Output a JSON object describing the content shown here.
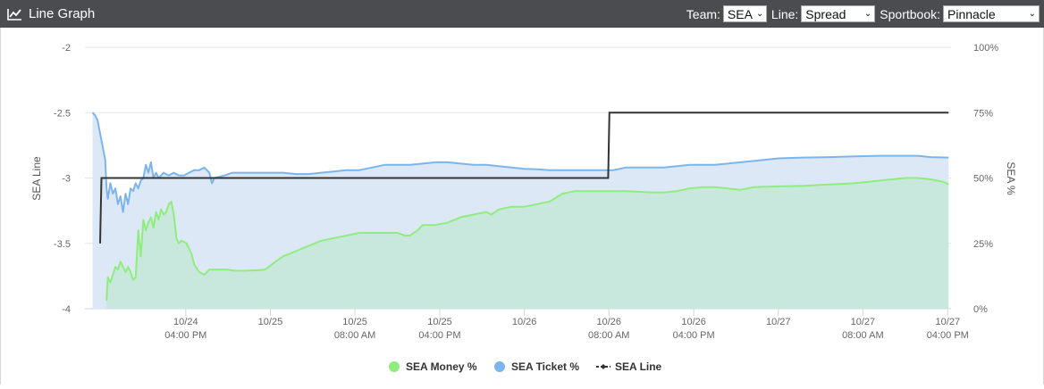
{
  "header": {
    "title": "Line Graph",
    "icon": "line-chart-icon",
    "team_label": "Team:",
    "team_value": "SEA",
    "line_label": "Line:",
    "line_value": "Spread",
    "sportbook_label": "Sportbook:",
    "sportbook_value": "Pinnacle"
  },
  "chart_data": {
    "type": "line",
    "xlabel": "",
    "x_ticks": [
      {
        "t": 24.667,
        "label": [
          "10/24",
          "04:00 PM"
        ]
      },
      {
        "t": 25.0,
        "label": [
          "10/25",
          ""
        ]
      },
      {
        "t": 25.333,
        "label": [
          "10/25",
          "08:00 AM"
        ]
      },
      {
        "t": 25.667,
        "label": [
          "10/25",
          "04:00 PM"
        ]
      },
      {
        "t": 26.0,
        "label": [
          "10/26",
          ""
        ]
      },
      {
        "t": 26.333,
        "label": [
          "10/26",
          "08:00 AM"
        ]
      },
      {
        "t": 26.667,
        "label": [
          "10/26",
          "04:00 PM"
        ]
      },
      {
        "t": 27.0,
        "label": [
          "10/27",
          ""
        ]
      },
      {
        "t": 27.333,
        "label": [
          "10/27",
          "08:00 AM"
        ]
      },
      {
        "t": 27.667,
        "label": [
          "10/27",
          "04:00 PM"
        ]
      }
    ],
    "y_left": {
      "label": "SEA Line",
      "min": -4,
      "max": -2,
      "ticks": [
        "-2",
        "-2.5",
        "-3",
        "-3.5",
        "-4"
      ],
      "tick_values": [
        -2,
        -2.5,
        -3,
        -3.5,
        -4
      ]
    },
    "y_right": {
      "label": "SEA %",
      "min": 0,
      "max": 100,
      "ticks": [
        "100%",
        "75%",
        "50%",
        "25%",
        "0%"
      ],
      "tick_values": [
        100,
        75,
        50,
        25,
        0
      ]
    },
    "grid": true,
    "legend_position": "bottom-center",
    "series": [
      {
        "name": "SEA Money %",
        "axis": "right",
        "color": "#90ed7d",
        "fill": "#c8e8de",
        "points": [
          [
            24.355,
            3
          ],
          [
            24.36,
            12
          ],
          [
            24.37,
            10
          ],
          [
            24.38,
            13
          ],
          [
            24.39,
            16
          ],
          [
            24.4,
            15
          ],
          [
            24.41,
            18
          ],
          [
            24.42,
            16
          ],
          [
            24.43,
            14
          ],
          [
            24.44,
            16
          ],
          [
            24.45,
            14
          ],
          [
            24.46,
            11
          ],
          [
            24.47,
            12
          ],
          [
            24.48,
            30
          ],
          [
            24.49,
            20
          ],
          [
            24.5,
            34
          ],
          [
            24.51,
            30
          ],
          [
            24.52,
            33
          ],
          [
            24.53,
            35
          ],
          [
            24.54,
            31
          ],
          [
            24.55,
            37
          ],
          [
            24.56,
            34
          ],
          [
            24.57,
            38
          ],
          [
            24.58,
            36
          ],
          [
            24.59,
            37
          ],
          [
            24.6,
            40
          ],
          [
            24.61,
            41
          ],
          [
            24.62,
            36
          ],
          [
            24.63,
            27
          ],
          [
            24.64,
            25
          ],
          [
            24.65,
            26
          ],
          [
            24.67,
            25
          ],
          [
            24.69,
            21
          ],
          [
            24.7,
            17
          ],
          [
            24.72,
            14
          ],
          [
            24.74,
            13
          ],
          [
            24.76,
            15
          ],
          [
            24.78,
            15
          ],
          [
            24.8,
            15
          ],
          [
            24.83,
            15
          ],
          [
            24.86,
            14.5
          ],
          [
            24.9,
            14.5
          ],
          [
            24.95,
            14.7
          ],
          [
            24.98,
            15
          ],
          [
            25.02,
            18
          ],
          [
            25.05,
            20
          ],
          [
            25.1,
            22
          ],
          [
            25.15,
            24
          ],
          [
            25.2,
            26
          ],
          [
            25.25,
            27
          ],
          [
            25.3,
            28
          ],
          [
            25.35,
            29
          ],
          [
            25.4,
            29
          ],
          [
            25.45,
            29
          ],
          [
            25.5,
            29
          ],
          [
            25.53,
            28
          ],
          [
            25.55,
            28
          ],
          [
            25.58,
            30
          ],
          [
            25.6,
            32
          ],
          [
            25.65,
            32
          ],
          [
            25.7,
            33
          ],
          [
            25.75,
            35
          ],
          [
            25.8,
            36
          ],
          [
            25.85,
            37
          ],
          [
            25.87,
            36
          ],
          [
            25.9,
            38
          ],
          [
            25.95,
            39
          ],
          [
            26.0,
            39
          ],
          [
            26.05,
            40
          ],
          [
            26.1,
            41
          ],
          [
            26.15,
            44
          ],
          [
            26.2,
            45
          ],
          [
            26.3,
            45
          ],
          [
            26.4,
            45
          ],
          [
            26.5,
            44.5
          ],
          [
            26.55,
            44.5
          ],
          [
            26.6,
            45
          ],
          [
            26.65,
            46
          ],
          [
            26.7,
            46.5
          ],
          [
            26.75,
            46.5
          ],
          [
            26.8,
            46
          ],
          [
            26.85,
            45.5
          ],
          [
            26.88,
            46
          ],
          [
            26.9,
            46.5
          ],
          [
            27.0,
            46.8
          ],
          [
            27.1,
            47
          ],
          [
            27.2,
            47.5
          ],
          [
            27.3,
            48
          ],
          [
            27.4,
            49
          ],
          [
            27.5,
            50
          ],
          [
            27.55,
            50
          ],
          [
            27.6,
            49.5
          ],
          [
            27.65,
            48.5
          ],
          [
            27.67,
            47.5
          ]
        ]
      },
      {
        "name": "SEA Ticket %",
        "axis": "right",
        "color": "#7cb5ec",
        "fill": "#dde8f7",
        "points": [
          [
            24.3,
            75
          ],
          [
            24.31,
            74
          ],
          [
            24.32,
            72
          ],
          [
            24.33,
            67
          ],
          [
            24.34,
            62
          ],
          [
            24.35,
            57
          ],
          [
            24.355,
            46
          ],
          [
            24.36,
            42
          ],
          [
            24.37,
            48
          ],
          [
            24.38,
            44
          ],
          [
            24.39,
            46
          ],
          [
            24.4,
            40
          ],
          [
            24.41,
            43
          ],
          [
            24.42,
            37
          ],
          [
            24.43,
            44
          ],
          [
            24.44,
            40
          ],
          [
            24.45,
            46
          ],
          [
            24.46,
            45
          ],
          [
            24.47,
            48
          ],
          [
            24.48,
            46
          ],
          [
            24.49,
            49
          ],
          [
            24.5,
            50
          ],
          [
            24.51,
            55
          ],
          [
            24.52,
            52
          ],
          [
            24.53,
            56
          ],
          [
            24.54,
            50
          ],
          [
            24.55,
            52
          ],
          [
            24.56,
            50
          ],
          [
            24.57,
            51
          ],
          [
            24.58,
            52
          ],
          [
            24.6,
            51
          ],
          [
            24.62,
            52
          ],
          [
            24.64,
            51
          ],
          [
            24.66,
            51
          ],
          [
            24.68,
            52
          ],
          [
            24.7,
            53
          ],
          [
            24.72,
            53
          ],
          [
            24.74,
            54
          ],
          [
            24.76,
            52
          ],
          [
            24.77,
            48
          ],
          [
            24.78,
            50
          ],
          [
            24.82,
            51
          ],
          [
            24.85,
            52
          ],
          [
            24.9,
            52
          ],
          [
            24.95,
            52
          ],
          [
            25.0,
            52
          ],
          [
            25.05,
            52
          ],
          [
            25.1,
            51.5
          ],
          [
            25.15,
            51.5
          ],
          [
            25.2,
            52
          ],
          [
            25.25,
            52.5
          ],
          [
            25.3,
            53
          ],
          [
            25.35,
            53
          ],
          [
            25.4,
            54
          ],
          [
            25.45,
            55
          ],
          [
            25.5,
            55
          ],
          [
            25.55,
            55
          ],
          [
            25.6,
            55.5
          ],
          [
            25.65,
            56
          ],
          [
            25.7,
            56
          ],
          [
            25.75,
            55.5
          ],
          [
            25.8,
            55
          ],
          [
            25.85,
            55
          ],
          [
            25.9,
            54.5
          ],
          [
            25.95,
            54
          ],
          [
            26.0,
            53.5
          ],
          [
            26.05,
            53.3
          ],
          [
            26.1,
            53
          ],
          [
            26.15,
            53
          ],
          [
            26.2,
            53
          ],
          [
            26.25,
            53
          ],
          [
            26.3,
            53
          ],
          [
            26.35,
            53
          ],
          [
            26.4,
            54
          ],
          [
            26.45,
            54
          ],
          [
            26.5,
            54
          ],
          [
            26.55,
            54
          ],
          [
            26.6,
            54.5
          ],
          [
            26.65,
            55
          ],
          [
            26.7,
            55
          ],
          [
            26.75,
            55
          ],
          [
            26.8,
            55.5
          ],
          [
            26.85,
            56
          ],
          [
            26.9,
            56.5
          ],
          [
            26.95,
            57
          ],
          [
            27.0,
            57.5
          ],
          [
            27.1,
            57.8
          ],
          [
            27.2,
            58
          ],
          [
            27.3,
            58.3
          ],
          [
            27.4,
            58.5
          ],
          [
            27.5,
            58.5
          ],
          [
            27.55,
            58.5
          ],
          [
            27.6,
            58
          ],
          [
            27.67,
            57.8
          ]
        ]
      },
      {
        "name": "SEA Line",
        "axis": "left",
        "color": "#333333",
        "steps": [
          [
            24.33,
            -3.5
          ],
          [
            24.335,
            -3.0
          ],
          [
            26.33,
            -3.0
          ],
          [
            26.335,
            -2.5
          ],
          [
            27.67,
            -2.5
          ]
        ]
      }
    ]
  }
}
